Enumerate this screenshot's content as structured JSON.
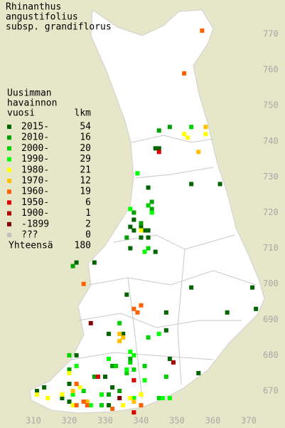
{
  "title": [
    "Rhinanthus",
    "angustifolius",
    "subsp. grandiflorus"
  ],
  "legend": {
    "header": [
      "Uusimman",
      "havainnon",
      "vuosi"
    ],
    "count_header": "lkm",
    "items": [
      {
        "label": "2015-",
        "count": 54,
        "color": "#006400",
        "x": [
          344,
          345,
          342,
          354,
          362,
          338,
          337,
          338,
          340,
          341,
          342,
          340,
          342,
          337,
          322,
          327,
          344,
          354,
          371,
          372,
          364,
          356,
          348,
          311,
          313,
          318,
          320,
          320,
          335,
          331,
          347,
          322,
          336,
          347,
          330,
          332,
          331
        ],
        "y": [
          738,
          738,
          727,
          728,
          728,
          718,
          716,
          715,
          716,
          715,
          715,
          713,
          713,
          710,
          706,
          706,
          709,
          699,
          699,
          693,
          692,
          675,
          679,
          670,
          671,
          668,
          672,
          667,
          686,
          686,
          687,
          680,
          697,
          692,
          674,
          671,
          666
        ]
      },
      {
        "label": "2010-",
        "count": 16,
        "color": "#00a000",
        "x": [
          348,
          345,
          339,
          343,
          343,
          338,
          340,
          336,
          321,
          332,
          337,
          327,
          331,
          320,
          334
        ],
        "y": [
          744,
          743,
          731,
          723,
          721,
          720,
          717,
          713,
          705,
          677,
          679,
          674,
          669,
          676,
          670
        ]
      },
      {
        "label": "2000-",
        "count": 20,
        "color": "#00d000",
        "x": [
          354,
          342,
          343,
          342,
          334,
          337,
          338,
          336,
          341,
          342,
          347,
          345,
          324,
          329,
          320,
          333
        ],
        "y": [
          744,
          722,
          720,
          710,
          689,
          678,
          676,
          675,
          677,
          685,
          674,
          668,
          670,
          666,
          680,
          677
        ]
      },
      {
        "label": "1990-",
        "count": 29,
        "color": "#00ff00",
        "x": [
          339,
          343,
          337,
          341,
          331,
          337,
          338,
          336,
          345,
          348,
          322,
          329,
          341,
          338,
          346,
          321,
          326
        ],
        "y": [
          731,
          720,
          721,
          709,
          679,
          681,
          680,
          676,
          686,
          668,
          677,
          669,
          673,
          668,
          668,
          669,
          666
        ]
      },
      {
        "label": "1980-",
        "count": 21,
        "color": "#ffff00",
        "x": [
          352,
          358,
          340,
          311,
          320,
          318,
          314,
          321,
          335,
          337,
          323,
          340,
          353
        ],
        "y": [
          742,
          742,
          715,
          669,
          675,
          669,
          668,
          666,
          666,
          668,
          671,
          669,
          741
        ]
      },
      {
        "label": "1970-",
        "count": 12,
        "color": "#ffc000",
        "x": [
          358,
          334,
          334,
          335,
          321,
          325,
          338,
          356
        ],
        "y": [
          744,
          686,
          684,
          685,
          670,
          667,
          667,
          737
        ]
      },
      {
        "label": "1960-",
        "count": 19,
        "color": "#ff6000",
        "x": [
          357,
          352,
          338,
          339,
          340,
          324,
          324,
          325,
          322,
          332,
          340,
          322
        ],
        "y": [
          771,
          759,
          693,
          692,
          694,
          700,
          667,
          666,
          666,
          665,
          666,
          672
        ]
      },
      {
        "label": "1950-",
        "count": 6,
        "color": "#e00000",
        "x": [
          345,
          328,
          338,
          338
        ],
        "y": [
          737,
          674,
          673,
          664
        ]
      },
      {
        "label": "1900-",
        "count": 1,
        "color": "#b00000",
        "x": [
          349
        ],
        "y": [
          678
        ]
      },
      {
        "label": "-1899",
        "count": 2,
        "color": "#800000",
        "x": [
          326,
          334
        ],
        "y": [
          689,
          668
        ]
      },
      {
        "label": "???",
        "count": 0,
        "color": "#c0c0c0",
        "x": [],
        "y": []
      }
    ],
    "total_label": "Yhteensä",
    "total": 180
  },
  "axes": {
    "xticks": [
      310,
      320,
      330,
      340,
      350,
      360,
      370
    ],
    "yticks": [
      670,
      680,
      690,
      700,
      710,
      720,
      730,
      740,
      750,
      760,
      770
    ]
  }
}
